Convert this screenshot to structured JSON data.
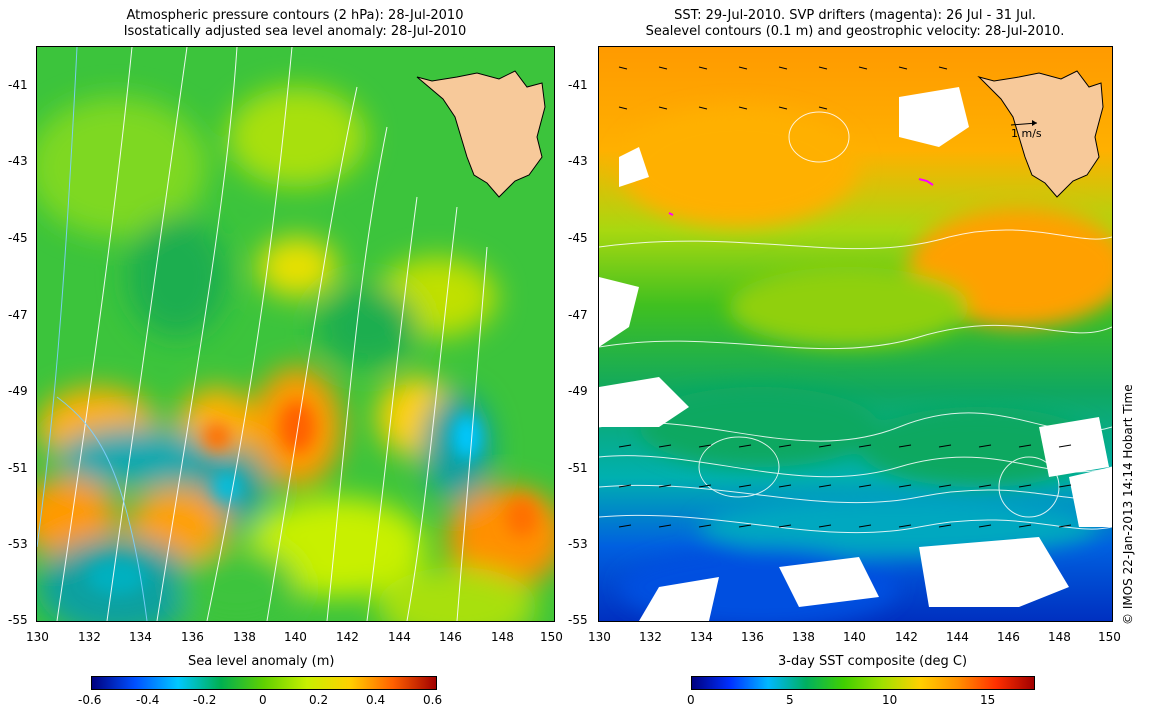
{
  "left_panel": {
    "title_line1": "Atmospheric pressure contours (2 hPa): 28-Jul-2010",
    "title_line2": "Isostatically adjusted sea level anomaly: 28-Jul-2010",
    "colorbar_label": "Sea level anomaly (m)",
    "colorbar_ticks": [
      "-0.6",
      "-0.4",
      "-0.2",
      "0",
      "0.2",
      "0.4",
      "0.6"
    ]
  },
  "right_panel": {
    "title_line1": "SST: 29-Jul-2010. SVP drifters (magenta): 26 Jul - 31 Jul.",
    "title_line2": "Sealevel contours (0.1 m) and geostrophic velocity: 28-Jul-2010.",
    "colorbar_label": "3-day SST composite (deg C)",
    "colorbar_ticks": [
      "0",
      "5",
      "10",
      "15"
    ],
    "velocity_scale_label": "1 m/s"
  },
  "axes": {
    "lat_labels": [
      "-41",
      "-43",
      "-45",
      "-47",
      "-49",
      "-51",
      "-53",
      "-55"
    ],
    "lon_labels": [
      "130",
      "132",
      "134",
      "136",
      "138",
      "140",
      "142",
      "144",
      "146",
      "148",
      "150"
    ]
  },
  "credit": "© IMOS 22-Jan-2013 14:14 Hobart Time",
  "colors": {
    "land": "#f7c99a",
    "sla_gradient": [
      "#00007f",
      "#0050ff",
      "#00c8ff",
      "#00b050",
      "#60d000",
      "#c8f000",
      "#ffd000",
      "#ff6000",
      "#a00000"
    ],
    "sst_gradient": [
      "#00007f",
      "#0030ff",
      "#00b8ff",
      "#00b060",
      "#40d000",
      "#a0e000",
      "#ffd000",
      "#ff9000",
      "#ff3000",
      "#a00000"
    ]
  }
}
